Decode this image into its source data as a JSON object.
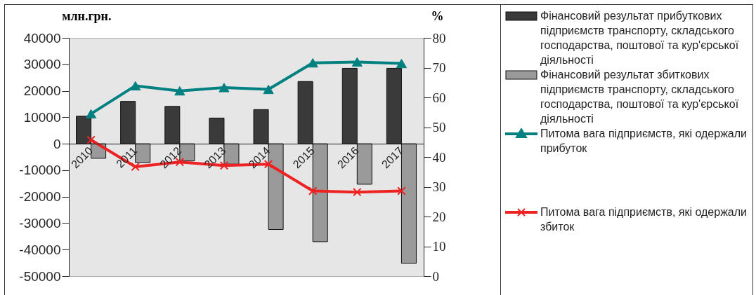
{
  "chart_data": {
    "type": "bar",
    "ylabel": "млн.грн.",
    "y2label": "%",
    "categories": [
      "2010",
      "2011",
      "2012",
      "2013",
      "2014",
      "2015",
      "2016",
      "2017"
    ],
    "series": [
      {
        "name": "Фінансовий результат прибуткових підприємств транспорту, складського господарства, поштової та кур'єрської діяльності",
        "color": "#3a3a3a",
        "values": [
          10400,
          16000,
          14100,
          9700,
          12900,
          23500,
          28500,
          28500
        ]
      },
      {
        "name": "Фінансовий результат збиткових підприємств транспорту, складського господарства, поштової та кур'єрської діяльності",
        "color": "#9a9a9a",
        "values": [
          -5500,
          -7100,
          -6500,
          -7700,
          -32400,
          -37000,
          -15300,
          -45200
        ]
      },
      {
        "name": "Питома вага підприємств, які одержали прибуток",
        "type": "line",
        "axis": "y2",
        "marker": "triangle",
        "color": "#008080",
        "values": [
          54.5,
          63.9,
          62.2,
          63.3,
          62.7,
          71.6,
          71.9,
          71.4
        ]
      },
      {
        "name": "Питома вага підприємств, які одержали збиток",
        "type": "line",
        "axis": "y2",
        "marker": "cross",
        "color": "#ee2222",
        "values": [
          45.7,
          36.7,
          38.3,
          37.1,
          37.6,
          28.6,
          28.2,
          28.6
        ]
      }
    ],
    "ylim": [
      -50000,
      40000
    ],
    "yticks": [
      -50000,
      -40000,
      -30000,
      -20000,
      -10000,
      0,
      10000,
      20000,
      30000,
      40000
    ],
    "y2lim": [
      0,
      80
    ],
    "y2ticks": [
      0,
      10,
      20,
      30,
      40,
      50,
      60,
      70,
      80
    ],
    "grid": false,
    "legend": "right"
  }
}
